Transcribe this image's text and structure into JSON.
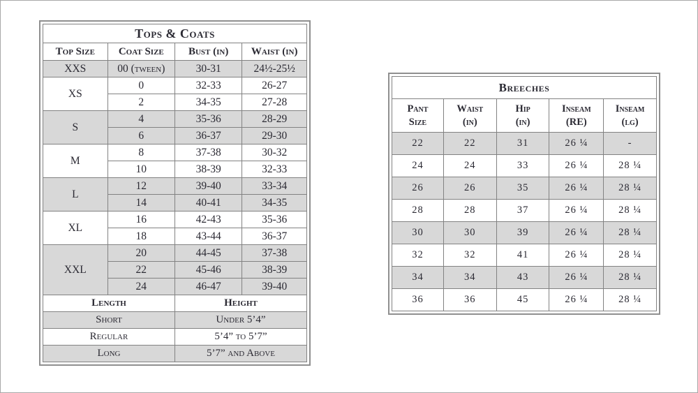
{
  "tops_coats": {
    "title": "Tops & Coats",
    "columns": [
      "Top Size",
      "Coat Size",
      "Bust (in)",
      "Waist (in)"
    ],
    "groups": [
      {
        "size": "XXS",
        "shaded": true,
        "rows": [
          [
            "00 (tween)",
            "30-31",
            "24½-25½"
          ]
        ]
      },
      {
        "size": "XS",
        "shaded": false,
        "rows": [
          [
            "0",
            "32-33",
            "26-27"
          ],
          [
            "2",
            "34-35",
            "27-28"
          ]
        ]
      },
      {
        "size": "S",
        "shaded": true,
        "rows": [
          [
            "4",
            "35-36",
            "28-29"
          ],
          [
            "6",
            "36-37",
            "29-30"
          ]
        ]
      },
      {
        "size": "M",
        "shaded": false,
        "rows": [
          [
            "8",
            "37-38",
            "30-32"
          ],
          [
            "10",
            "38-39",
            "32-33"
          ]
        ]
      },
      {
        "size": "L",
        "shaded": true,
        "rows": [
          [
            "12",
            "39-40",
            "33-34"
          ],
          [
            "14",
            "40-41",
            "34-35"
          ]
        ]
      },
      {
        "size": "XL",
        "shaded": false,
        "rows": [
          [
            "16",
            "42-43",
            "35-36"
          ],
          [
            "18",
            "43-44",
            "36-37"
          ]
        ]
      },
      {
        "size": "XXL",
        "shaded": true,
        "rows": [
          [
            "20",
            "44-45",
            "37-38"
          ],
          [
            "22",
            "45-46",
            "38-39"
          ],
          [
            "24",
            "46-47",
            "39-40"
          ]
        ]
      }
    ],
    "length_section": {
      "headers": [
        "Length",
        "Height"
      ],
      "rows": [
        {
          "length": "Short",
          "height": "Under 5’4”",
          "shaded": true
        },
        {
          "length": "Regular",
          "height": "5’4” to 5’7”",
          "shaded": false
        },
        {
          "length": "Long",
          "height": "5’7” and Above",
          "shaded": true
        }
      ]
    }
  },
  "breeches": {
    "title": "Breeches",
    "columns": [
      {
        "l1": "Pant",
        "l2": "Size"
      },
      {
        "l1": "Waist",
        "l2": "(in)"
      },
      {
        "l1": "Hip",
        "l2": "(in)"
      },
      {
        "l1": "Inseam",
        "l2": "(RE)"
      },
      {
        "l1": "Inseam",
        "l2": "(lg)"
      }
    ],
    "rows": [
      {
        "cells": [
          "22",
          "22",
          "31",
          "26 ¼",
          "-"
        ],
        "shaded": true
      },
      {
        "cells": [
          "24",
          "24",
          "33",
          "26 ¼",
          "28 ¼"
        ],
        "shaded": false
      },
      {
        "cells": [
          "26",
          "26",
          "35",
          "26 ¼",
          "28 ¼"
        ],
        "shaded": true
      },
      {
        "cells": [
          "28",
          "28",
          "37",
          "26 ¼",
          "28 ¼"
        ],
        "shaded": false
      },
      {
        "cells": [
          "30",
          "30",
          "39",
          "26 ¼",
          "28 ¼"
        ],
        "shaded": true
      },
      {
        "cells": [
          "32",
          "32",
          "41",
          "26 ¼",
          "28 ¼"
        ],
        "shaded": false
      },
      {
        "cells": [
          "34",
          "34",
          "43",
          "26 ¼",
          "28 ¼"
        ],
        "shaded": true
      },
      {
        "cells": [
          "36",
          "36",
          "45",
          "26 ¼",
          "28 ¼"
        ],
        "shaded": false
      }
    ]
  }
}
